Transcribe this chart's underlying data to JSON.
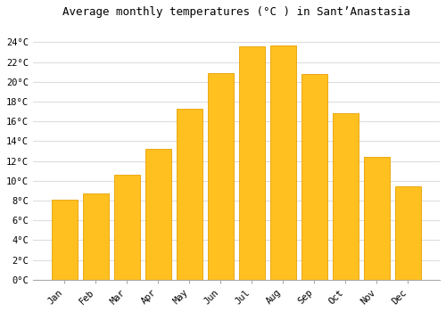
{
  "title": "Average monthly temperatures (°C ) in Sant’Anastasia",
  "months": [
    "Jan",
    "Feb",
    "Mar",
    "Apr",
    "May",
    "Jun",
    "Jul",
    "Aug",
    "Sep",
    "Oct",
    "Nov",
    "Dec"
  ],
  "values": [
    8.1,
    8.7,
    10.6,
    13.2,
    17.3,
    20.9,
    23.6,
    23.7,
    20.8,
    16.8,
    12.4,
    9.4
  ],
  "bar_color": "#FFC020",
  "bar_edge_color": "#E8A000",
  "background_color": "#FFFFFF",
  "grid_color": "#DDDDDD",
  "ylim": [
    0,
    26
  ],
  "yticks": [
    0,
    2,
    4,
    6,
    8,
    10,
    12,
    14,
    16,
    18,
    20,
    22,
    24
  ],
  "title_fontsize": 9,
  "tick_fontsize": 7.5,
  "font_family": "monospace",
  "bar_width": 0.85
}
